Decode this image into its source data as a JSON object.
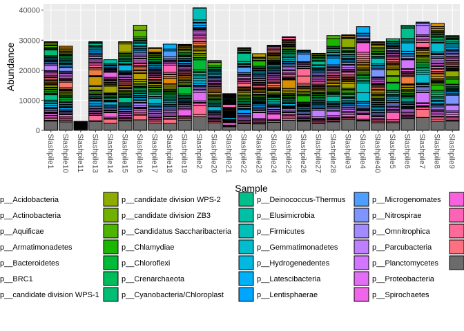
{
  "chart_data": {
    "type": "bar",
    "stacked": true,
    "title": "",
    "xlabel": "Sample",
    "ylabel": "Abundance",
    "ylim": [
      0,
      42000
    ],
    "yticks": [
      0,
      10000,
      20000,
      30000,
      40000
    ],
    "grid": true,
    "legend_position": "bottom",
    "categories": [
      "Slashpile1",
      "Slashpile10",
      "Slashpile11",
      "Slashpile13",
      "Slashpile14",
      "Slashpile15",
      "Slashpile16",
      "Slashpile17",
      "Slashpile18",
      "Slashpile19",
      "Slashpile2",
      "Slashpile20",
      "Slashpile21",
      "Slashpile22",
      "Slashpile23",
      "Slashpile24",
      "Slashpile25",
      "Slashpile26",
      "Slashpile27",
      "Slashpile28",
      "Slashpile3",
      "Slashpile4",
      "Slashpile40",
      "Slashpile5",
      "Slashpile6",
      "Slashpile7",
      "Slashpile8",
      "Slashpile9"
    ],
    "totals": [
      29500,
      28000,
      3000,
      29500,
      23500,
      29500,
      35000,
      27500,
      28700,
      28600,
      40800,
      23200,
      12200,
      27500,
      25500,
      28300,
      31200,
      26700,
      25600,
      31500,
      31800,
      34500,
      29500,
      30500,
      35000,
      36000,
      35600,
      31500
    ],
    "series": [
      {
        "name": "p__Acidobacteria",
        "color": "#F8766D"
      },
      {
        "name": "p__Actinobacteria",
        "color": "#F07E3F"
      },
      {
        "name": "p__Aquificae",
        "color": "#E58700"
      },
      {
        "name": "p__Armatimonadetes",
        "color": "#D89000"
      },
      {
        "name": "p__Bacteroidetes",
        "color": "#C99800"
      },
      {
        "name": "p__BRC1",
        "color": "#B79F00"
      },
      {
        "name": "p__candidate division WPS-1",
        "color": "#A3A500"
      },
      {
        "name": "p__candidate division WPS-2",
        "color": "#8DAB00"
      },
      {
        "name": "p__candidate division ZB3",
        "color": "#72B000"
      },
      {
        "name": "p__Candidatus Saccharibacteria",
        "color": "#4DB400"
      },
      {
        "name": "p__Chlamydiae",
        "color": "#1BB700"
      },
      {
        "name": "p__Chloroflexi",
        "color": "#00BA38"
      },
      {
        "name": "p__Crenarchaeota",
        "color": "#00BC59"
      },
      {
        "name": "p__Cyanobacteria/Chloroplast",
        "color": "#00BE74"
      },
      {
        "name": "p__Deinococcus-Thermus",
        "color": "#00BF8C"
      },
      {
        "name": "p__Elusimicrobia",
        "color": "#00C0A3"
      },
      {
        "name": "p__Firmicutes",
        "color": "#00BFB8"
      },
      {
        "name": "p__Gemmatimonadetes",
        "color": "#00BCCD"
      },
      {
        "name": "p__Hydrogenedentes",
        "color": "#00B8E0"
      },
      {
        "name": "p__Latescibacteria",
        "color": "#00B0F6"
      },
      {
        "name": "p__Lentisphaerae",
        "color": "#00A5FF"
      },
      {
        "name": "p__Microgenomates",
        "color": "#4E9EFF"
      },
      {
        "name": "p__Nitrospirae",
        "color": "#7E94FF"
      },
      {
        "name": "p__Omnitrophica",
        "color": "#A38AFF"
      },
      {
        "name": "p__Parcubacteria",
        "color": "#BE80FF"
      },
      {
        "name": "p__Planctomycetes",
        "color": "#D376FF"
      },
      {
        "name": "p__Proteobacteria",
        "color": "#E36EF6"
      },
      {
        "name": "p__Spirochaetes",
        "color": "#F066EA"
      },
      {
        "name": "",
        "color": "#F962DD"
      },
      {
        "name": "",
        "color": "#FF63B6"
      },
      {
        "name": "",
        "color": "#FF6A98"
      },
      {
        "name": "",
        "color": "#FC717F"
      },
      {
        "name": "",
        "color": "#6B6B6B"
      }
    ]
  }
}
